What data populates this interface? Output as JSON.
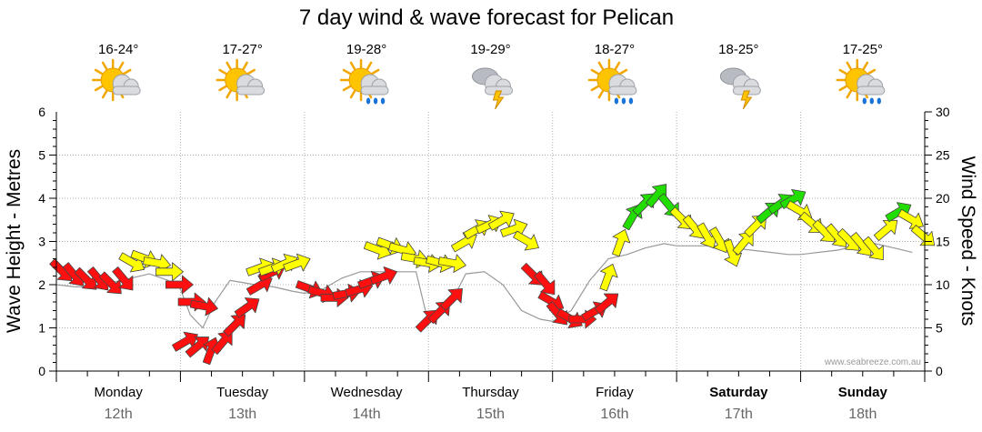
{
  "chart_data": {
    "type": "line",
    "title": "7 day wind & wave forecast for Pelican",
    "ylabel_left": "Wave Height - Metres",
    "ylabel_right": "Wind Speed - Knots",
    "ylim_left": [
      0,
      6
    ],
    "ylim_right": [
      0,
      30
    ],
    "yticks_left": [
      "0",
      "1",
      "2",
      "3",
      "4",
      "5",
      "6"
    ],
    "yticks_right": [
      "0",
      "5",
      "10",
      "15",
      "20",
      "25",
      "30"
    ],
    "grid": true,
    "watermark": "www.seabreeze.com.au",
    "days": [
      {
        "day": "Monday",
        "date": "12th",
        "temp": "16-24°",
        "icon": "partly-cloudy-icon",
        "bold": false
      },
      {
        "day": "Tuesday",
        "date": "13th",
        "temp": "17-27°",
        "icon": "partly-cloudy-icon",
        "bold": false
      },
      {
        "day": "Wednesday",
        "date": "14th",
        "temp": "19-28°",
        "icon": "sun-cloud-rain-icon",
        "bold": false
      },
      {
        "day": "Thursday",
        "date": "15th",
        "temp": "19-29°",
        "icon": "storm-cloud-icon",
        "bold": false
      },
      {
        "day": "Friday",
        "date": "16th",
        "temp": "18-27°",
        "icon": "sun-cloud-rain-icon",
        "bold": false
      },
      {
        "day": "Saturday",
        "date": "17th",
        "temp": "18-25°",
        "icon": "storm-cloud-icon",
        "bold": true
      },
      {
        "day": "Sunday",
        "date": "18th",
        "temp": "17-25°",
        "icon": "sun-cloud-rain-icon",
        "bold": true
      }
    ],
    "wave_series": {
      "name": "Wave Height",
      "x": [
        0,
        0.15,
        0.3,
        0.45,
        0.6,
        0.75,
        0.9,
        1.0,
        1.08,
        1.18,
        1.28,
        1.4,
        1.5,
        1.6,
        1.75,
        1.9,
        2.0,
        2.15,
        2.3,
        2.45,
        2.6,
        2.75,
        2.9,
        3.0,
        3.15,
        3.3,
        3.45,
        3.6,
        3.75,
        3.9,
        4.0,
        4.15,
        4.3,
        4.45,
        4.6,
        4.75,
        4.9,
        5.0,
        5.15,
        5.3,
        5.45,
        5.6,
        5.75,
        5.9,
        6.0,
        6.15,
        6.3,
        6.45,
        6.6,
        6.75,
        6.9
      ],
      "y": [
        2.0,
        1.95,
        1.95,
        2.05,
        2.15,
        2.25,
        2.1,
        1.9,
        1.3,
        1.0,
        1.6,
        2.1,
        2.05,
        2.0,
        1.95,
        1.85,
        1.8,
        1.9,
        2.15,
        2.3,
        2.3,
        2.3,
        2.3,
        1.1,
        1.4,
        2.25,
        2.3,
        2.0,
        1.4,
        1.2,
        1.15,
        1.4,
        2.1,
        2.6,
        2.7,
        2.85,
        2.95,
        2.9,
        2.9,
        2.9,
        2.85,
        2.8,
        2.75,
        2.7,
        2.7,
        2.75,
        2.8,
        2.9,
        2.95,
        2.85,
        2.75
      ]
    },
    "wind_series": {
      "name": "Wind Speed",
      "arrows": [
        {
          "x": 0.05,
          "y": 11.5,
          "dir": 315,
          "c": "red"
        },
        {
          "x": 0.15,
          "y": 11.0,
          "dir": 320,
          "c": "red"
        },
        {
          "x": 0.25,
          "y": 10.5,
          "dir": 315,
          "c": "red"
        },
        {
          "x": 0.35,
          "y": 10.5,
          "dir": 320,
          "c": "red"
        },
        {
          "x": 0.45,
          "y": 10.0,
          "dir": 315,
          "c": "red"
        },
        {
          "x": 0.55,
          "y": 10.5,
          "dir": 320,
          "c": "red"
        },
        {
          "x": 0.62,
          "y": 12.5,
          "dir": 300,
          "c": "yellow"
        },
        {
          "x": 0.72,
          "y": 13.0,
          "dir": 290,
          "c": "yellow"
        },
        {
          "x": 0.82,
          "y": 12.5,
          "dir": 280,
          "c": "yellow"
        },
        {
          "x": 0.92,
          "y": 11.5,
          "dir": 270,
          "c": "yellow"
        },
        {
          "x": 1.0,
          "y": 10.0,
          "dir": 270,
          "c": "red"
        },
        {
          "x": 1.1,
          "y": 8.0,
          "dir": 270,
          "c": "red"
        },
        {
          "x": 1.2,
          "y": 7.5,
          "dir": 280,
          "c": "red"
        },
        {
          "x": 1.05,
          "y": 3.5,
          "dir": 240,
          "c": "red"
        },
        {
          "x": 1.15,
          "y": 3.0,
          "dir": 230,
          "c": "red"
        },
        {
          "x": 1.25,
          "y": 2.5,
          "dir": 200,
          "c": "red"
        },
        {
          "x": 1.35,
          "y": 3.5,
          "dir": 220,
          "c": "red"
        },
        {
          "x": 1.45,
          "y": 5.5,
          "dir": 225,
          "c": "red"
        },
        {
          "x": 1.55,
          "y": 7.5,
          "dir": 235,
          "c": "red"
        },
        {
          "x": 1.65,
          "y": 10.0,
          "dir": 240,
          "c": "red"
        },
        {
          "x": 1.75,
          "y": 11.5,
          "dir": 245,
          "c": "red"
        },
        {
          "x": 1.65,
          "y": 12.0,
          "dir": 250,
          "c": "yellow"
        },
        {
          "x": 1.75,
          "y": 12.0,
          "dir": 250,
          "c": "yellow"
        },
        {
          "x": 1.85,
          "y": 12.5,
          "dir": 245,
          "c": "yellow"
        },
        {
          "x": 1.95,
          "y": 12.5,
          "dir": 250,
          "c": "yellow"
        },
        {
          "x": 2.05,
          "y": 9.5,
          "dir": 290,
          "c": "red"
        },
        {
          "x": 2.15,
          "y": 9.0,
          "dir": 285,
          "c": "red"
        },
        {
          "x": 2.25,
          "y": 8.5,
          "dir": 270,
          "c": "red"
        },
        {
          "x": 2.35,
          "y": 9.0,
          "dir": 260,
          "c": "red"
        },
        {
          "x": 2.45,
          "y": 9.5,
          "dir": 255,
          "c": "red"
        },
        {
          "x": 2.55,
          "y": 10.5,
          "dir": 250,
          "c": "red"
        },
        {
          "x": 2.65,
          "y": 11.0,
          "dir": 250,
          "c": "red"
        },
        {
          "x": 2.6,
          "y": 14.0,
          "dir": 290,
          "c": "yellow"
        },
        {
          "x": 2.7,
          "y": 14.5,
          "dir": 290,
          "c": "yellow"
        },
        {
          "x": 2.8,
          "y": 14.0,
          "dir": 285,
          "c": "yellow"
        },
        {
          "x": 2.9,
          "y": 13.0,
          "dir": 280,
          "c": "yellow"
        },
        {
          "x": 3.0,
          "y": 12.5,
          "dir": 280,
          "c": "yellow"
        },
        {
          "x": 3.1,
          "y": 12.5,
          "dir": 285,
          "c": "yellow"
        },
        {
          "x": 3.2,
          "y": 12.5,
          "dir": 280,
          "c": "yellow"
        },
        {
          "x": 3.0,
          "y": 6.0,
          "dir": 225,
          "c": "red"
        },
        {
          "x": 3.1,
          "y": 7.0,
          "dir": 225,
          "c": "red"
        },
        {
          "x": 3.2,
          "y": 8.5,
          "dir": 225,
          "c": "red"
        },
        {
          "x": 3.3,
          "y": 15.0,
          "dir": 240,
          "c": "yellow"
        },
        {
          "x": 3.4,
          "y": 16.5,
          "dir": 240,
          "c": "yellow"
        },
        {
          "x": 3.5,
          "y": 17.0,
          "dir": 245,
          "c": "yellow"
        },
        {
          "x": 3.6,
          "y": 17.5,
          "dir": 240,
          "c": "yellow"
        },
        {
          "x": 3.7,
          "y": 16.5,
          "dir": 250,
          "c": "yellow"
        },
        {
          "x": 3.8,
          "y": 15.0,
          "dir": 300,
          "c": "yellow"
        },
        {
          "x": 3.85,
          "y": 11.0,
          "dir": 315,
          "c": "red"
        },
        {
          "x": 3.95,
          "y": 10.0,
          "dir": 320,
          "c": "red"
        },
        {
          "x": 4.0,
          "y": 8.0,
          "dir": 300,
          "c": "red"
        },
        {
          "x": 4.05,
          "y": 6.5,
          "dir": 320,
          "c": "red"
        },
        {
          "x": 4.15,
          "y": 6.0,
          "dir": 300,
          "c": "red"
        },
        {
          "x": 4.25,
          "y": 6.0,
          "dir": 270,
          "c": "red"
        },
        {
          "x": 4.35,
          "y": 7.0,
          "dir": 240,
          "c": "red"
        },
        {
          "x": 4.45,
          "y": 8.0,
          "dir": 230,
          "c": "red"
        },
        {
          "x": 4.45,
          "y": 11.0,
          "dir": 200,
          "c": "yellow"
        },
        {
          "x": 4.55,
          "y": 15.0,
          "dir": 200,
          "c": "yellow"
        },
        {
          "x": 4.65,
          "y": 18.0,
          "dir": 210,
          "c": "green"
        },
        {
          "x": 4.75,
          "y": 19.5,
          "dir": 225,
          "c": "green"
        },
        {
          "x": 4.85,
          "y": 20.5,
          "dir": 220,
          "c": "green"
        },
        {
          "x": 4.95,
          "y": 19.0,
          "dir": 320,
          "c": "green"
        },
        {
          "x": 5.05,
          "y": 17.5,
          "dir": 315,
          "c": "yellow"
        },
        {
          "x": 5.15,
          "y": 16.5,
          "dir": 320,
          "c": "yellow"
        },
        {
          "x": 5.25,
          "y": 15.5,
          "dir": 330,
          "c": "yellow"
        },
        {
          "x": 5.35,
          "y": 15.0,
          "dir": 330,
          "c": "yellow"
        },
        {
          "x": 5.45,
          "y": 13.5,
          "dir": 340,
          "c": "yellow"
        },
        {
          "x": 5.55,
          "y": 15.0,
          "dir": 220,
          "c": "yellow"
        },
        {
          "x": 5.65,
          "y": 17.0,
          "dir": 225,
          "c": "yellow"
        },
        {
          "x": 5.75,
          "y": 18.5,
          "dir": 230,
          "c": "green"
        },
        {
          "x": 5.85,
          "y": 19.5,
          "dir": 235,
          "c": "green"
        },
        {
          "x": 5.95,
          "y": 20.0,
          "dir": 240,
          "c": "green"
        },
        {
          "x": 6.0,
          "y": 18.5,
          "dir": 300,
          "c": "yellow"
        },
        {
          "x": 6.1,
          "y": 17.0,
          "dir": 310,
          "c": "yellow"
        },
        {
          "x": 6.2,
          "y": 16.0,
          "dir": 315,
          "c": "yellow"
        },
        {
          "x": 6.3,
          "y": 15.5,
          "dir": 320,
          "c": "yellow"
        },
        {
          "x": 6.4,
          "y": 15.0,
          "dir": 315,
          "c": "yellow"
        },
        {
          "x": 6.5,
          "y": 14.5,
          "dir": 320,
          "c": "yellow"
        },
        {
          "x": 6.6,
          "y": 14.0,
          "dir": 320,
          "c": "yellow"
        },
        {
          "x": 6.7,
          "y": 16.5,
          "dir": 230,
          "c": "yellow"
        },
        {
          "x": 6.8,
          "y": 18.5,
          "dir": 240,
          "c": "green"
        },
        {
          "x": 6.9,
          "y": 17.5,
          "dir": 300,
          "c": "yellow"
        },
        {
          "x": 7.0,
          "y": 15.5,
          "dir": 310,
          "c": "yellow"
        }
      ]
    },
    "colors": {
      "red": "#ff1010",
      "yellow": "#ffff00",
      "green": "#22dd00",
      "grid": "#b0b0b0",
      "wave_line": "#999999"
    }
  }
}
